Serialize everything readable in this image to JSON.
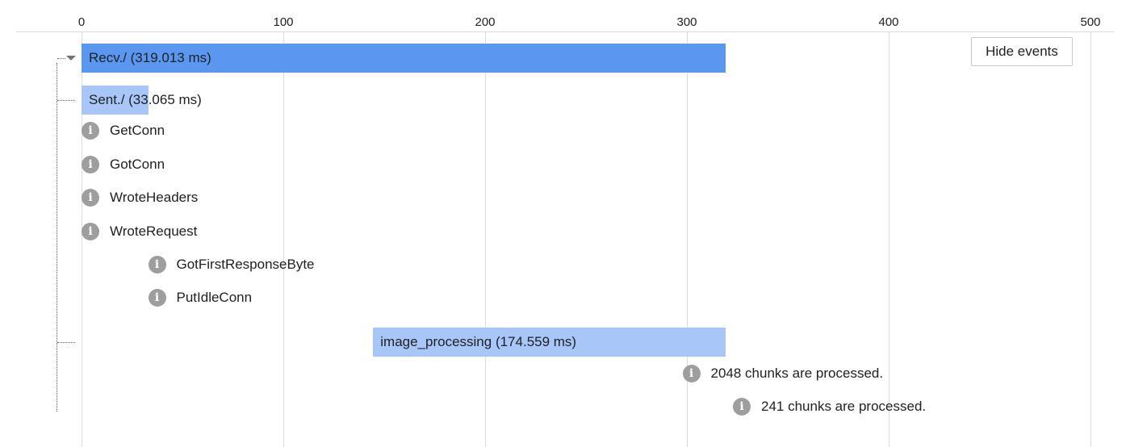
{
  "axis": {
    "ticks": [
      "0",
      "100",
      "200",
      "300",
      "400",
      "500"
    ],
    "tick_values": [
      0,
      100,
      200,
      300,
      400,
      500
    ]
  },
  "hide_events_button": {
    "label": "Hide events"
  },
  "spans": [
    {
      "label": "Recv./ (319.013 ms)",
      "start_ms": 0,
      "duration_ms": 319.013,
      "color": "#5b96f0"
    },
    {
      "label": "Sent./ (33.065 ms)",
      "start_ms": 0,
      "duration_ms": 33.065,
      "color": "#a8c7f8"
    },
    {
      "label": "image_processing (174.559 ms)",
      "start_ms": 144.5,
      "duration_ms": 174.559,
      "color": "#a8c7f8"
    }
  ],
  "events": [
    {
      "label": "GetConn",
      "time_ms": 0,
      "icon": "info-icon"
    },
    {
      "label": "GotConn",
      "time_ms": 0,
      "icon": "info-icon"
    },
    {
      "label": "WroteHeaders",
      "time_ms": 0,
      "icon": "info-icon"
    },
    {
      "label": "WroteRequest",
      "time_ms": 0,
      "icon": "info-icon"
    },
    {
      "label": "GotFirstResponseByte",
      "time_ms": 33,
      "icon": "info-icon"
    },
    {
      "label": "PutIdleConn",
      "time_ms": 33,
      "icon": "info-icon"
    },
    {
      "label": "2048 chunks are processed.",
      "time_ms": 297,
      "icon": "info-icon"
    },
    {
      "label": "241 chunks are processed.",
      "time_ms": 322,
      "icon": "info-icon"
    }
  ],
  "icon_glyph": "i"
}
